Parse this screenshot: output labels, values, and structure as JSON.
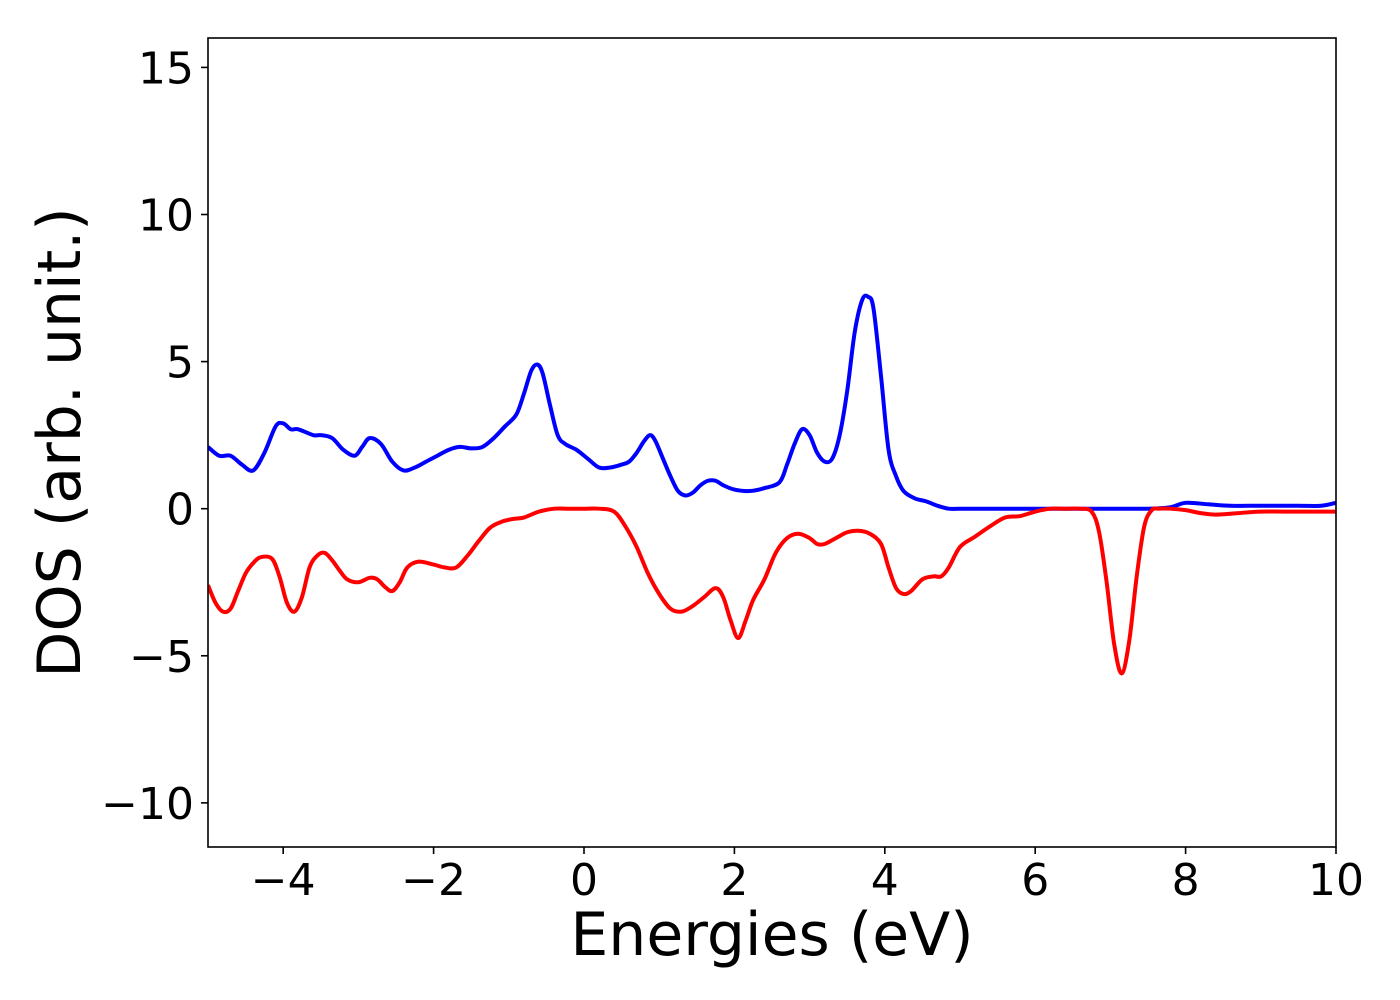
{
  "chart_data": {
    "type": "line",
    "title": "",
    "xlabel": "Energies (eV)",
    "ylabel": "DOS (arb. unit.)",
    "xlim": [
      -5,
      10
    ],
    "ylim": [
      -11.5,
      16
    ],
    "xticks": [
      -4,
      -2,
      0,
      2,
      4,
      6,
      8,
      10
    ],
    "xtick_labels": [
      "−4",
      "−2",
      "0",
      "2",
      "4",
      "6",
      "8",
      "10"
    ],
    "yticks": [
      -10,
      -5,
      0,
      5,
      10,
      15
    ],
    "ytick_labels": [
      "−10",
      "−5",
      "0",
      "5",
      "10",
      "15"
    ],
    "grid": false,
    "legend": "none",
    "series": [
      {
        "color": "#0000ff",
        "x": [
          -5.0,
          -4.85,
          -4.7,
          -4.55,
          -4.4,
          -4.25,
          -4.1,
          -4.0,
          -3.9,
          -3.8,
          -3.6,
          -3.5,
          -3.35,
          -3.2,
          -3.05,
          -2.95,
          -2.85,
          -2.7,
          -2.55,
          -2.4,
          -2.25,
          -2.1,
          -1.95,
          -1.8,
          -1.65,
          -1.5,
          -1.35,
          -1.2,
          -1.05,
          -0.9,
          -0.8,
          -0.7,
          -0.62,
          -0.55,
          -0.45,
          -0.35,
          -0.25,
          -0.1,
          0.05,
          0.2,
          0.35,
          0.5,
          0.6,
          0.7,
          0.8,
          0.88,
          0.95,
          1.05,
          1.15,
          1.25,
          1.35,
          1.45,
          1.55,
          1.65,
          1.75,
          1.85,
          2.0,
          2.2,
          2.4,
          2.6,
          2.7,
          2.8,
          2.9,
          3.0,
          3.1,
          3.2,
          3.3,
          3.4,
          3.5,
          3.6,
          3.7,
          3.78,
          3.85,
          3.95,
          4.05,
          4.15,
          4.25,
          4.4,
          4.55,
          4.7,
          4.85,
          5.0,
          5.5,
          6.0,
          6.5,
          7.0,
          7.5,
          7.8,
          8.0,
          8.3,
          8.6,
          9.0,
          9.5,
          9.8,
          10.0
        ],
        "y": [
          2.1,
          1.8,
          1.8,
          1.5,
          1.3,
          1.9,
          2.8,
          2.9,
          2.7,
          2.7,
          2.5,
          2.5,
          2.4,
          2.0,
          1.8,
          2.1,
          2.4,
          2.2,
          1.6,
          1.3,
          1.4,
          1.6,
          1.8,
          2.0,
          2.1,
          2.05,
          2.1,
          2.4,
          2.8,
          3.2,
          3.9,
          4.7,
          4.9,
          4.6,
          3.5,
          2.5,
          2.2,
          2.0,
          1.7,
          1.4,
          1.4,
          1.5,
          1.6,
          1.9,
          2.3,
          2.5,
          2.3,
          1.7,
          1.1,
          0.6,
          0.45,
          0.55,
          0.8,
          0.95,
          0.95,
          0.8,
          0.65,
          0.6,
          0.7,
          0.9,
          1.5,
          2.2,
          2.7,
          2.5,
          1.9,
          1.6,
          1.7,
          2.5,
          4.0,
          6.0,
          7.1,
          7.2,
          6.8,
          4.5,
          2.0,
          1.1,
          0.6,
          0.35,
          0.25,
          0.1,
          0.0,
          0.0,
          0.0,
          0.0,
          0.0,
          0.0,
          0.0,
          0.05,
          0.2,
          0.15,
          0.1,
          0.1,
          0.1,
          0.1,
          0.2
        ]
      },
      {
        "color": "#ff0000",
        "x": [
          -5.0,
          -4.9,
          -4.8,
          -4.7,
          -4.6,
          -4.5,
          -4.4,
          -4.3,
          -4.15,
          -4.05,
          -3.95,
          -3.85,
          -3.75,
          -3.65,
          -3.55,
          -3.45,
          -3.35,
          -3.25,
          -3.15,
          -3.0,
          -2.85,
          -2.75,
          -2.65,
          -2.55,
          -2.45,
          -2.35,
          -2.2,
          -2.0,
          -1.85,
          -1.7,
          -1.55,
          -1.4,
          -1.25,
          -1.1,
          -0.95,
          -0.8,
          -0.6,
          -0.4,
          -0.2,
          0.0,
          0.2,
          0.4,
          0.55,
          0.7,
          0.85,
          1.0,
          1.15,
          1.3,
          1.45,
          1.6,
          1.75,
          1.85,
          1.95,
          2.05,
          2.15,
          2.25,
          2.4,
          2.55,
          2.7,
          2.85,
          3.0,
          3.1,
          3.2,
          3.35,
          3.5,
          3.65,
          3.8,
          3.95,
          4.05,
          4.15,
          4.25,
          4.35,
          4.5,
          4.65,
          4.75,
          4.85,
          5.0,
          5.2,
          5.4,
          5.6,
          5.8,
          6.0,
          6.2,
          6.4,
          6.6,
          6.75,
          6.85,
          6.95,
          7.05,
          7.15,
          7.25,
          7.35,
          7.45,
          7.55,
          7.65,
          7.8,
          8.0,
          8.2,
          8.4,
          8.7,
          9.0,
          9.5,
          10.0
        ],
        "y": [
          -2.6,
          -3.2,
          -3.5,
          -3.4,
          -2.8,
          -2.2,
          -1.85,
          -1.65,
          -1.7,
          -2.3,
          -3.2,
          -3.5,
          -3.0,
          -2.0,
          -1.6,
          -1.5,
          -1.75,
          -2.1,
          -2.4,
          -2.5,
          -2.35,
          -2.4,
          -2.65,
          -2.8,
          -2.5,
          -2.0,
          -1.8,
          -1.9,
          -2.0,
          -2.0,
          -1.6,
          -1.1,
          -0.65,
          -0.45,
          -0.35,
          -0.3,
          -0.1,
          0.0,
          0.0,
          0.0,
          0.0,
          -0.1,
          -0.6,
          -1.3,
          -2.2,
          -2.9,
          -3.4,
          -3.5,
          -3.3,
          -3.0,
          -2.7,
          -3.0,
          -3.8,
          -4.4,
          -3.8,
          -3.1,
          -2.4,
          -1.5,
          -1.0,
          -0.85,
          -1.0,
          -1.2,
          -1.2,
          -1.0,
          -0.8,
          -0.75,
          -0.85,
          -1.2,
          -2.0,
          -2.7,
          -2.9,
          -2.8,
          -2.4,
          -2.3,
          -2.3,
          -2.0,
          -1.3,
          -0.95,
          -0.6,
          -0.3,
          -0.25,
          -0.1,
          0.0,
          0.0,
          0.0,
          -0.1,
          -0.8,
          -2.5,
          -4.6,
          -5.6,
          -4.5,
          -2.3,
          -0.6,
          -0.05,
          0.0,
          0.0,
          -0.05,
          -0.15,
          -0.2,
          -0.15,
          -0.1,
          -0.1,
          -0.1
        ]
      }
    ]
  }
}
